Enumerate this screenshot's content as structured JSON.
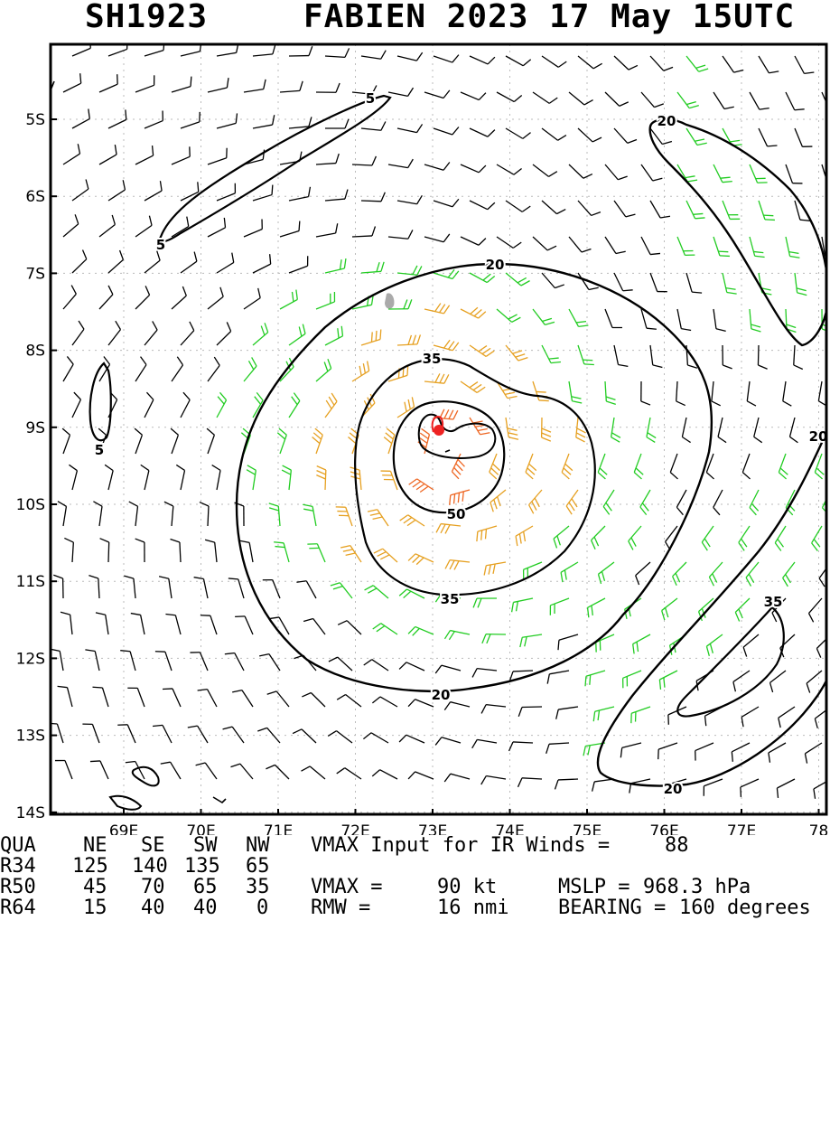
{
  "header": {
    "storm_id": "SH1923",
    "storm_title": "FABIEN 2023 17 May 15UTC"
  },
  "map": {
    "lon_labels": [
      "69E",
      "70E",
      "71E",
      "72E",
      "73E",
      "74E",
      "75E",
      "76E",
      "77E",
      "78"
    ],
    "lat_labels": [
      "5S",
      "6S",
      "7S",
      "8S",
      "9S",
      "10S",
      "11S",
      "12S",
      "13S",
      "14S"
    ],
    "contour_labels": [
      "5",
      "5",
      "5",
      "20",
      "20",
      "20",
      "20",
      "35",
      "35",
      "35",
      "50",
      "20"
    ],
    "colors": {
      "barb_weak": "#000000",
      "barb_34kt": "#22cc22",
      "barb_50kt": "#e6a020",
      "barb_64kt": "#ee6622",
      "center_marker": "#ee2222",
      "contour": "#000000",
      "land": "#aaaaaa"
    }
  },
  "table": {
    "header": [
      "QUA",
      "NE",
      "SE",
      "SW",
      "NW"
    ],
    "rows": [
      {
        "label": "R34",
        "values": [
          "125",
          "140",
          "135",
          "65"
        ]
      },
      {
        "label": "R50",
        "values": [
          "45",
          "70",
          "65",
          "35"
        ]
      },
      {
        "label": "R64",
        "values": [
          "15",
          "40",
          "40",
          "0"
        ]
      }
    ],
    "vmax_input_label": "VMAX Input for IR Winds =",
    "vmax_input_value": "88",
    "vmax_label": "VMAX =",
    "vmax_value": "90 kt",
    "mslp_label": "MSLP =",
    "mslp_value": "968.3 hPa",
    "rmw_label": "RMW =",
    "rmw_value": "16 nmi",
    "bearing_label": "BEARING =",
    "bearing_value": "160 degrees"
  }
}
